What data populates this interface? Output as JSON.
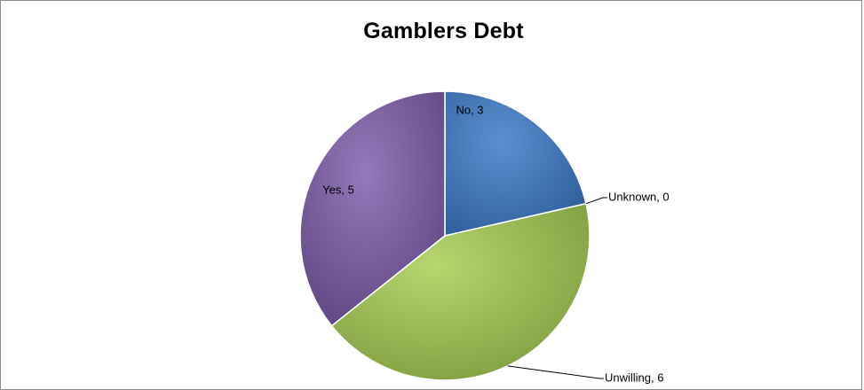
{
  "chart_data": {
    "type": "pie",
    "title": "Gamblers Debt",
    "categories": [
      "No",
      "Unknown",
      "Unwilling",
      "Yes"
    ],
    "values": [
      3,
      0,
      6,
      5
    ],
    "labels": [
      "No, 3",
      "Unknown, 0",
      "Unwilling, 6",
      "Yes, 5"
    ],
    "colors": [
      "#4a7ebb",
      "#9bbb59",
      "#9bbb59",
      "#8064a2"
    ],
    "legend": "none",
    "start_angle": "12 o'clock",
    "direction": "clockwise"
  }
}
